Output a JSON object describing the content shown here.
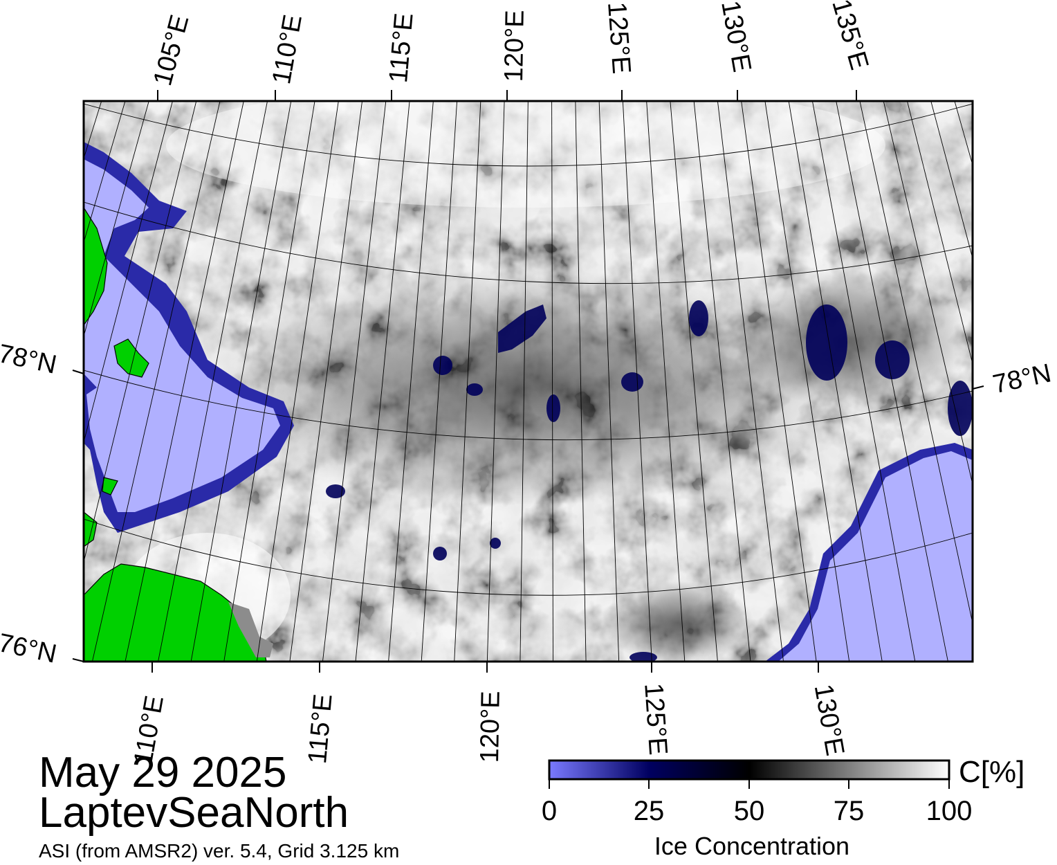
{
  "title": {
    "date": "May 29 2025",
    "region": "LaptevSeaNorth",
    "source": "ASI (from AMSR2) ver. 5.4,  Grid 3.125 km"
  },
  "map": {
    "top_lon_labels": [
      "105°E",
      "110°E",
      "115°E",
      "120°E",
      "125°E",
      "130°E",
      "135°E"
    ],
    "bottom_lon_labels": [
      "110°E",
      "115°E",
      "120°E",
      "125°E",
      "130°E"
    ],
    "lat_labels_left": [
      "78°N",
      "76°N"
    ],
    "lat_labels_right": [
      "78°N"
    ],
    "colors": {
      "land": "#00d000",
      "open_water": "#b0b0ff",
      "coast_gray": "#8c8c8c"
    }
  },
  "colorbar": {
    "label": "Ice Concentration",
    "unit": "C[%]",
    "ticks": [
      "0",
      "25",
      "50",
      "75",
      "100"
    ],
    "scale": {
      "stops": [
        {
          "value": 0,
          "color": "#7a7aff"
        },
        {
          "value": 25,
          "color": "#000060"
        },
        {
          "value": 50,
          "color": "#000000"
        },
        {
          "value": 100,
          "color": "#ffffff"
        }
      ]
    }
  }
}
